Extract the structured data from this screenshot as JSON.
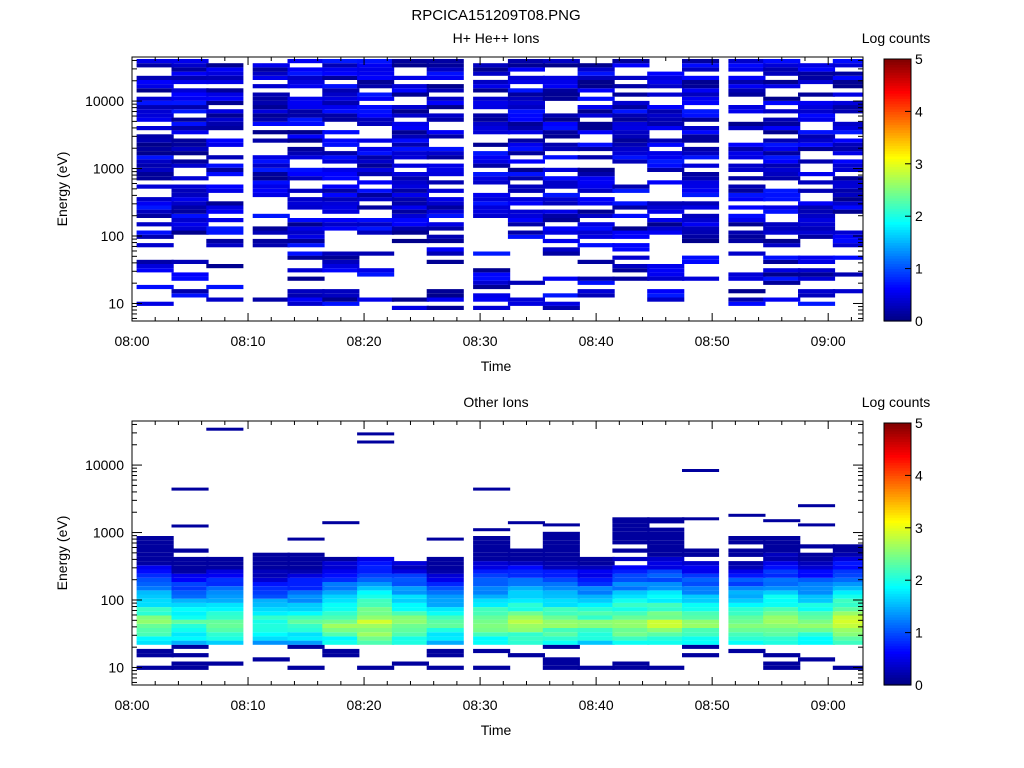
{
  "page_title": "RPCICA151209T08.PNG",
  "chart_data": [
    {
      "type": "heatmap",
      "title": "H+ He++ Ions",
      "xlabel": "Time",
      "ylabel": "Energy (eV)",
      "yscale": "log",
      "ylim": [
        5.5,
        45000
      ],
      "xlim": [
        "08:00",
        "09:03"
      ],
      "x_ticks": [
        "08:00",
        "08:10",
        "08:20",
        "08:30",
        "08:40",
        "08:50",
        "09:00"
      ],
      "y_ticks": [
        "10",
        "100",
        "1000",
        "10000"
      ],
      "colorbar": {
        "label": "Log counts",
        "range": [
          0,
          5
        ],
        "ticks": [
          "0",
          "1",
          "2",
          "3",
          "4",
          "5"
        ]
      },
      "time_bins": [
        "08:02",
        "08:05",
        "08:08",
        "08:12",
        "08:15",
        "08:18",
        "08:21",
        "08:24",
        "08:27",
        "08:31",
        "08:34",
        "08:37",
        "08:40",
        "08:43",
        "08:46",
        "08:49",
        "08:53",
        "08:56",
        "08:59",
        "09:02"
      ],
      "energy_range_eV": [
        8,
        42000
      ],
      "typical_log_counts": 0.3,
      "max_log_counts": 0.9,
      "grid": false
    },
    {
      "type": "heatmap",
      "title": "Other Ions",
      "xlabel": "Time",
      "ylabel": "Energy (eV)",
      "yscale": "log",
      "ylim": [
        5.5,
        45000
      ],
      "xlim": [
        "08:00",
        "09:03"
      ],
      "x_ticks": [
        "08:00",
        "08:10",
        "08:20",
        "08:30",
        "08:40",
        "08:50",
        "09:00"
      ],
      "y_ticks": [
        "10",
        "100",
        "1000",
        "10000"
      ],
      "colorbar": {
        "label": "Log counts",
        "range": [
          0,
          5
        ],
        "ticks": [
          "0",
          "1",
          "2",
          "3",
          "4",
          "5"
        ]
      },
      "time_bins": [
        "08:02",
        "08:05",
        "08:08",
        "08:12",
        "08:15",
        "08:18",
        "08:21",
        "08:24",
        "08:27",
        "08:31",
        "08:34",
        "08:37",
        "08:40",
        "08:43",
        "08:46",
        "08:49",
        "08:53",
        "08:56",
        "08:59",
        "09:02"
      ],
      "spectrum_top_eV": [
        1000,
        600,
        450,
        550,
        650,
        450,
        450,
        400,
        450,
        950,
        650,
        1100,
        450,
        1600,
        1600,
        600,
        900,
        900,
        700,
        700
      ],
      "peak_energy_eV": 45,
      "peak_log_counts": [
        2.6,
        2.3,
        2.5,
        2.2,
        2.3,
        2.6,
        2.9,
        2.6,
        2.3,
        2.6,
        2.7,
        2.6,
        2.5,
        2.7,
        2.8,
        2.6,
        2.6,
        2.8,
        2.6,
        2.9
      ],
      "sparse_high_energy_eV": [
        [],
        [
          4400,
          1250
        ],
        [
          34000
        ],
        [],
        [
          800
        ],
        [
          1400
        ],
        [
          29000,
          22000
        ],
        [],
        [
          800
        ],
        [
          4400,
          1100
        ],
        [
          1400
        ],
        [
          1300
        ],
        [],
        [
          1600
        ],
        [
          1600
        ],
        [
          8300,
          1600
        ],
        [
          1800
        ],
        [
          1500
        ],
        [
          2500,
          1300
        ],
        []
      ],
      "grid": false
    }
  ]
}
